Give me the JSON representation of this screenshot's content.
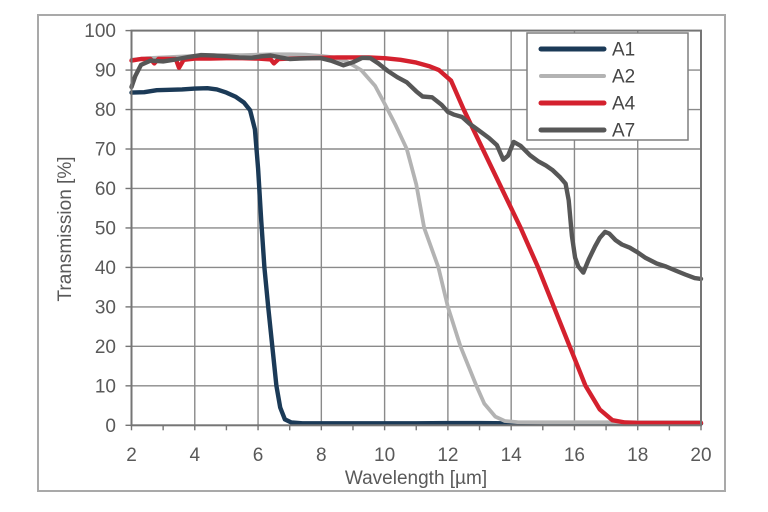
{
  "chart_data": {
    "type": "line",
    "title": "",
    "xlabel": "Wavelength [µm]",
    "ylabel": "Transmission [%]",
    "xlim": [
      2,
      20
    ],
    "ylim": [
      0,
      100
    ],
    "x_major_ticks": [
      2,
      4,
      6,
      8,
      10,
      12,
      14,
      16,
      18,
      20
    ],
    "x_minor_ticks": [
      3,
      5,
      7,
      9,
      11,
      13,
      15,
      17,
      19
    ],
    "y_ticks": [
      0,
      10,
      20,
      30,
      40,
      50,
      60,
      70,
      80,
      90,
      100
    ],
    "grid": true,
    "legend_position": "top-right",
    "colors": {
      "grid": "#8a8a8a",
      "axis": "#757575",
      "frame_border": "#a9a9a9",
      "tick_text": "#595959",
      "legend_text": "#454545",
      "legend_border": "#7f7f7f",
      "background": "#ffffff"
    },
    "series": [
      {
        "name": "A1",
        "color": "#1b3a57",
        "width": 4.4,
        "points": [
          [
            2,
            84.3
          ],
          [
            2.4,
            84.4
          ],
          [
            2.8,
            84.9
          ],
          [
            3.2,
            85.0
          ],
          [
            3.6,
            85.1
          ],
          [
            4,
            85.3
          ],
          [
            4.4,
            85.4
          ],
          [
            4.7,
            85.1
          ],
          [
            5,
            84.3
          ],
          [
            5.3,
            83.2
          ],
          [
            5.55,
            81.8
          ],
          [
            5.75,
            79.8
          ],
          [
            5.9,
            75
          ],
          [
            6,
            65
          ],
          [
            6.1,
            52
          ],
          [
            6.2,
            40
          ],
          [
            6.32,
            30
          ],
          [
            6.45,
            20
          ],
          [
            6.58,
            10
          ],
          [
            6.7,
            4.5
          ],
          [
            6.85,
            1.5
          ],
          [
            7.05,
            0.7
          ],
          [
            7.4,
            0.5
          ],
          [
            8,
            0.5
          ],
          [
            9,
            0.5
          ],
          [
            10,
            0.5
          ],
          [
            11,
            0.5
          ],
          [
            12,
            0.55
          ],
          [
            13,
            0.55
          ],
          [
            14,
            0.5
          ],
          [
            15,
            0.5
          ],
          [
            16,
            0.5
          ],
          [
            17,
            0.45
          ],
          [
            18,
            0.45
          ],
          [
            19,
            0.45
          ],
          [
            20,
            0.45
          ]
        ]
      },
      {
        "name": "A2",
        "color": "#b3b3b3",
        "width": 3.8,
        "points": [
          [
            2,
            92.6
          ],
          [
            2.5,
            93.0
          ],
          [
            3,
            93.2
          ],
          [
            3.5,
            93.4
          ],
          [
            4,
            93.6
          ],
          [
            4.5,
            93.7
          ],
          [
            5,
            93.8
          ],
          [
            5.5,
            93.8
          ],
          [
            6,
            93.9
          ],
          [
            6.5,
            94.0
          ],
          [
            7,
            94.0
          ],
          [
            7.5,
            93.9
          ],
          [
            8,
            93.6
          ],
          [
            8.4,
            93.2
          ],
          [
            8.8,
            92.2
          ],
          [
            9.26,
            90
          ],
          [
            9.7,
            86
          ],
          [
            10,
            81.5
          ],
          [
            10.35,
            76
          ],
          [
            10.7,
            70
          ],
          [
            11,
            61
          ],
          [
            11.25,
            50
          ],
          [
            11.7,
            40
          ],
          [
            12,
            30
          ],
          [
            12.4,
            20
          ],
          [
            12.9,
            10
          ],
          [
            13.15,
            5.5
          ],
          [
            13.5,
            2.2
          ],
          [
            13.8,
            1.1
          ],
          [
            14.2,
            0.8
          ],
          [
            15,
            0.75
          ],
          [
            16,
            0.75
          ],
          [
            17,
            0.75
          ],
          [
            18,
            0.75
          ],
          [
            19,
            0.75
          ],
          [
            20,
            0.75
          ]
        ]
      },
      {
        "name": "A4",
        "color": "#d4212e",
        "width": 4.4,
        "points": [
          [
            2,
            92.4
          ],
          [
            2.3,
            92.8
          ],
          [
            2.6,
            92.8
          ],
          [
            2.72,
            91.7
          ],
          [
            2.85,
            92.8
          ],
          [
            3.4,
            92.8
          ],
          [
            3.5,
            90.6
          ],
          [
            3.65,
            92.6
          ],
          [
            4,
            92.9
          ],
          [
            4.5,
            92.9
          ],
          [
            5,
            93.0
          ],
          [
            5.5,
            93.0
          ],
          [
            6,
            92.9
          ],
          [
            6.4,
            92.7
          ],
          [
            6.5,
            91.7
          ],
          [
            6.65,
            92.8
          ],
          [
            7,
            92.9
          ],
          [
            7.5,
            93.0
          ],
          [
            8,
            93.1
          ],
          [
            8.5,
            93.2
          ],
          [
            9,
            93.2
          ],
          [
            9.5,
            93.2
          ],
          [
            10,
            93.0
          ],
          [
            10.5,
            92.6
          ],
          [
            11,
            91.9
          ],
          [
            11.4,
            91.0
          ],
          [
            11.72,
            90
          ],
          [
            12.1,
            87.3
          ],
          [
            12.5,
            80
          ],
          [
            13.1,
            70
          ],
          [
            13.7,
            60
          ],
          [
            14.3,
            50
          ],
          [
            14.85,
            40
          ],
          [
            15.35,
            30
          ],
          [
            15.85,
            20
          ],
          [
            16.35,
            10
          ],
          [
            16.8,
            4
          ],
          [
            17.2,
            1.3
          ],
          [
            17.6,
            0.7
          ],
          [
            18,
            0.6
          ],
          [
            19,
            0.6
          ],
          [
            20,
            0.6
          ]
        ]
      },
      {
        "name": "A7",
        "color": "#575757",
        "width": 4.4,
        "points": [
          [
            2,
            85.7
          ],
          [
            2.12,
            88.5
          ],
          [
            2.3,
            91.3
          ],
          [
            2.6,
            92.4
          ],
          [
            3,
            92.2
          ],
          [
            3.4,
            92.7
          ],
          [
            3.8,
            93.3
          ],
          [
            4.2,
            93.8
          ],
          [
            4.6,
            93.7
          ],
          [
            5,
            93.5
          ],
          [
            5.4,
            93.2
          ],
          [
            5.8,
            93.1
          ],
          [
            6.1,
            93.5
          ],
          [
            6.4,
            93.7
          ],
          [
            6.7,
            93.2
          ],
          [
            7,
            92.8
          ],
          [
            7.3,
            92.9
          ],
          [
            7.7,
            93.0
          ],
          [
            8,
            93.0
          ],
          [
            8.3,
            92.4
          ],
          [
            8.7,
            91.2
          ],
          [
            9,
            92.0
          ],
          [
            9.3,
            93.1
          ],
          [
            9.55,
            93.0
          ],
          [
            9.8,
            91.7
          ],
          [
            10.1,
            89.8
          ],
          [
            10.4,
            88.2
          ],
          [
            10.7,
            86.9
          ],
          [
            11,
            84.6
          ],
          [
            11.2,
            83.3
          ],
          [
            11.5,
            83.1
          ],
          [
            11.8,
            81.2
          ],
          [
            12,
            79.4
          ],
          [
            12.2,
            78.7
          ],
          [
            12.45,
            78.1
          ],
          [
            12.7,
            76.3
          ],
          [
            13,
            74.6
          ],
          [
            13.3,
            72.8
          ],
          [
            13.55,
            71.0
          ],
          [
            13.75,
            67.3
          ],
          [
            13.9,
            68.3
          ],
          [
            14.08,
            71.8
          ],
          [
            14.3,
            70.8
          ],
          [
            14.6,
            68.4
          ],
          [
            14.87,
            66.8
          ],
          [
            15.1,
            65.8
          ],
          [
            15.3,
            64.7
          ],
          [
            15.55,
            62.8
          ],
          [
            15.72,
            61.2
          ],
          [
            15.82,
            57
          ],
          [
            15.92,
            48
          ],
          [
            16.02,
            42.5
          ],
          [
            16.12,
            40.3
          ],
          [
            16.28,
            38.7
          ],
          [
            16.45,
            42
          ],
          [
            16.65,
            45.3
          ],
          [
            16.8,
            47.5
          ],
          [
            16.97,
            49
          ],
          [
            17.1,
            48.6
          ],
          [
            17.3,
            46.9
          ],
          [
            17.5,
            45.8
          ],
          [
            17.75,
            45.0
          ],
          [
            18,
            43.8
          ],
          [
            18.25,
            42.4
          ],
          [
            18.6,
            41.0
          ],
          [
            18.9,
            40.2
          ],
          [
            19.2,
            39.2
          ],
          [
            19.5,
            38.2
          ],
          [
            19.8,
            37.3
          ],
          [
            20,
            37.1
          ]
        ]
      }
    ],
    "legend_entries": [
      "A1",
      "A2",
      "A4",
      "A7"
    ]
  }
}
